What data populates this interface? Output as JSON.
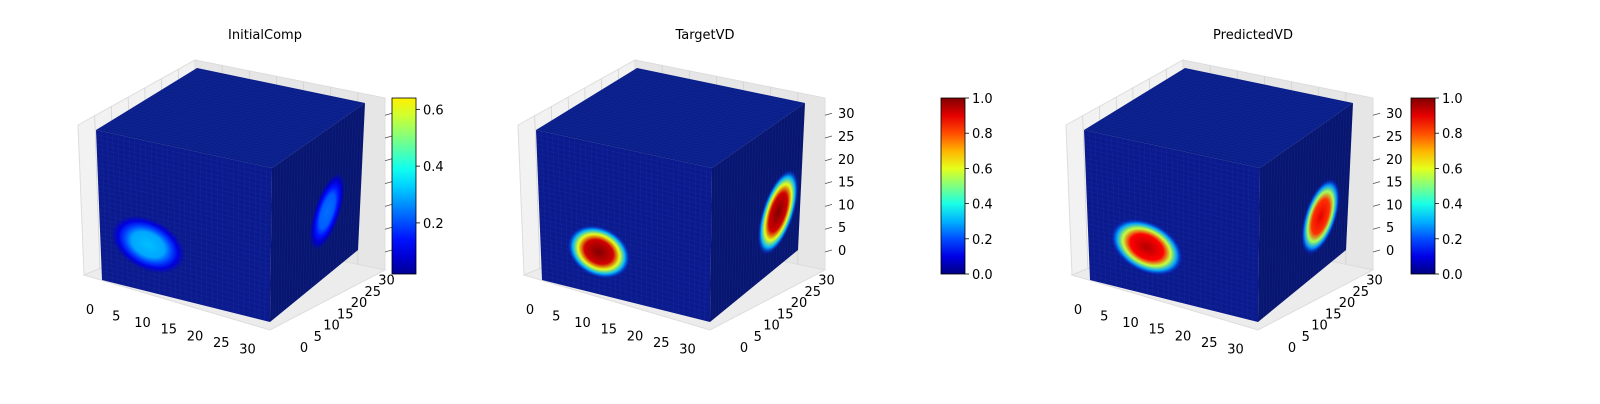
{
  "figure": {
    "description_visible": "Three 3D voxel cube plots with colorbars (jet colormap)"
  },
  "chart_data": [
    {
      "type": "voxel3d",
      "title": "InitialComp",
      "axes": {
        "x_ticks": [
          "0",
          "5",
          "10",
          "15",
          "20",
          "25",
          "30"
        ],
        "y_ticks": [
          "0",
          "5",
          "10",
          "15",
          "20",
          "25",
          "30"
        ],
        "z_ticks": [],
        "xlim": [
          0,
          32
        ],
        "ylim": [
          0,
          32
        ],
        "zlim": [
          0,
          32
        ]
      },
      "colormap": "jet",
      "colorbar": {
        "vmin": 0.02,
        "vmax": 0.64,
        "ticks": [
          0.2,
          0.4,
          0.6
        ],
        "tick_labels": [
          "0.2",
          "0.4",
          "0.6"
        ]
      },
      "blobs": [
        {
          "face": "front",
          "cx": 9,
          "cy": 10,
          "rx": 7,
          "ry": 5,
          "value": 0.2
        },
        {
          "face": "side",
          "cx": 20,
          "cy": 14,
          "rx": 4,
          "ry": 8,
          "value": 0.15
        }
      ]
    },
    {
      "type": "voxel3d",
      "title": "TargetVD",
      "axes": {
        "x_ticks": [
          "0",
          "5",
          "10",
          "15",
          "20",
          "25",
          "30"
        ],
        "y_ticks": [
          "0",
          "5",
          "10",
          "15",
          "20",
          "25",
          "30"
        ],
        "z_ticks": [
          "0",
          "5",
          "10",
          "15",
          "20",
          "25",
          "30"
        ],
        "xlim": [
          0,
          32
        ],
        "ylim": [
          0,
          32
        ],
        "zlim": [
          0,
          32
        ]
      },
      "colormap": "jet",
      "colorbar": {
        "vmin": 0.0,
        "vmax": 1.0,
        "ticks": [
          0.0,
          0.2,
          0.4,
          0.6,
          0.8,
          1.0
        ],
        "tick_labels": [
          "0.0",
          "0.2",
          "0.4",
          "0.6",
          "0.8",
          "1.0"
        ]
      },
      "blobs": [
        {
          "face": "front",
          "cx": 11,
          "cy": 9,
          "rx": 6,
          "ry": 5,
          "value": 1.0
        },
        {
          "face": "side",
          "cx": 24,
          "cy": 12,
          "rx": 5,
          "ry": 9,
          "value": 1.0
        }
      ]
    },
    {
      "type": "voxel3d",
      "title": "PredictedVD",
      "axes": {
        "x_ticks": [
          "0",
          "5",
          "10",
          "15",
          "20",
          "25",
          "30"
        ],
        "y_ticks": [
          "0",
          "5",
          "10",
          "15",
          "20",
          "25",
          "30"
        ],
        "z_ticks": [
          "0",
          "5",
          "10",
          "15",
          "20",
          "25",
          "30"
        ],
        "xlim": [
          0,
          32
        ],
        "ylim": [
          0,
          32
        ],
        "zlim": [
          0,
          32
        ]
      },
      "colormap": "jet",
      "colorbar": {
        "vmin": 0.0,
        "vmax": 1.0,
        "ticks": [
          0.0,
          0.2,
          0.4,
          0.6,
          0.8,
          1.0
        ],
        "tick_labels": [
          "0.0",
          "0.2",
          "0.4",
          "0.6",
          "0.8",
          "1.0"
        ]
      },
      "blobs": [
        {
          "face": "front",
          "cx": 11,
          "cy": 10,
          "rx": 7,
          "ry": 5,
          "value": 0.95
        },
        {
          "face": "side",
          "cx": 22,
          "cy": 12,
          "rx": 5,
          "ry": 8,
          "value": 0.9
        }
      ]
    }
  ]
}
